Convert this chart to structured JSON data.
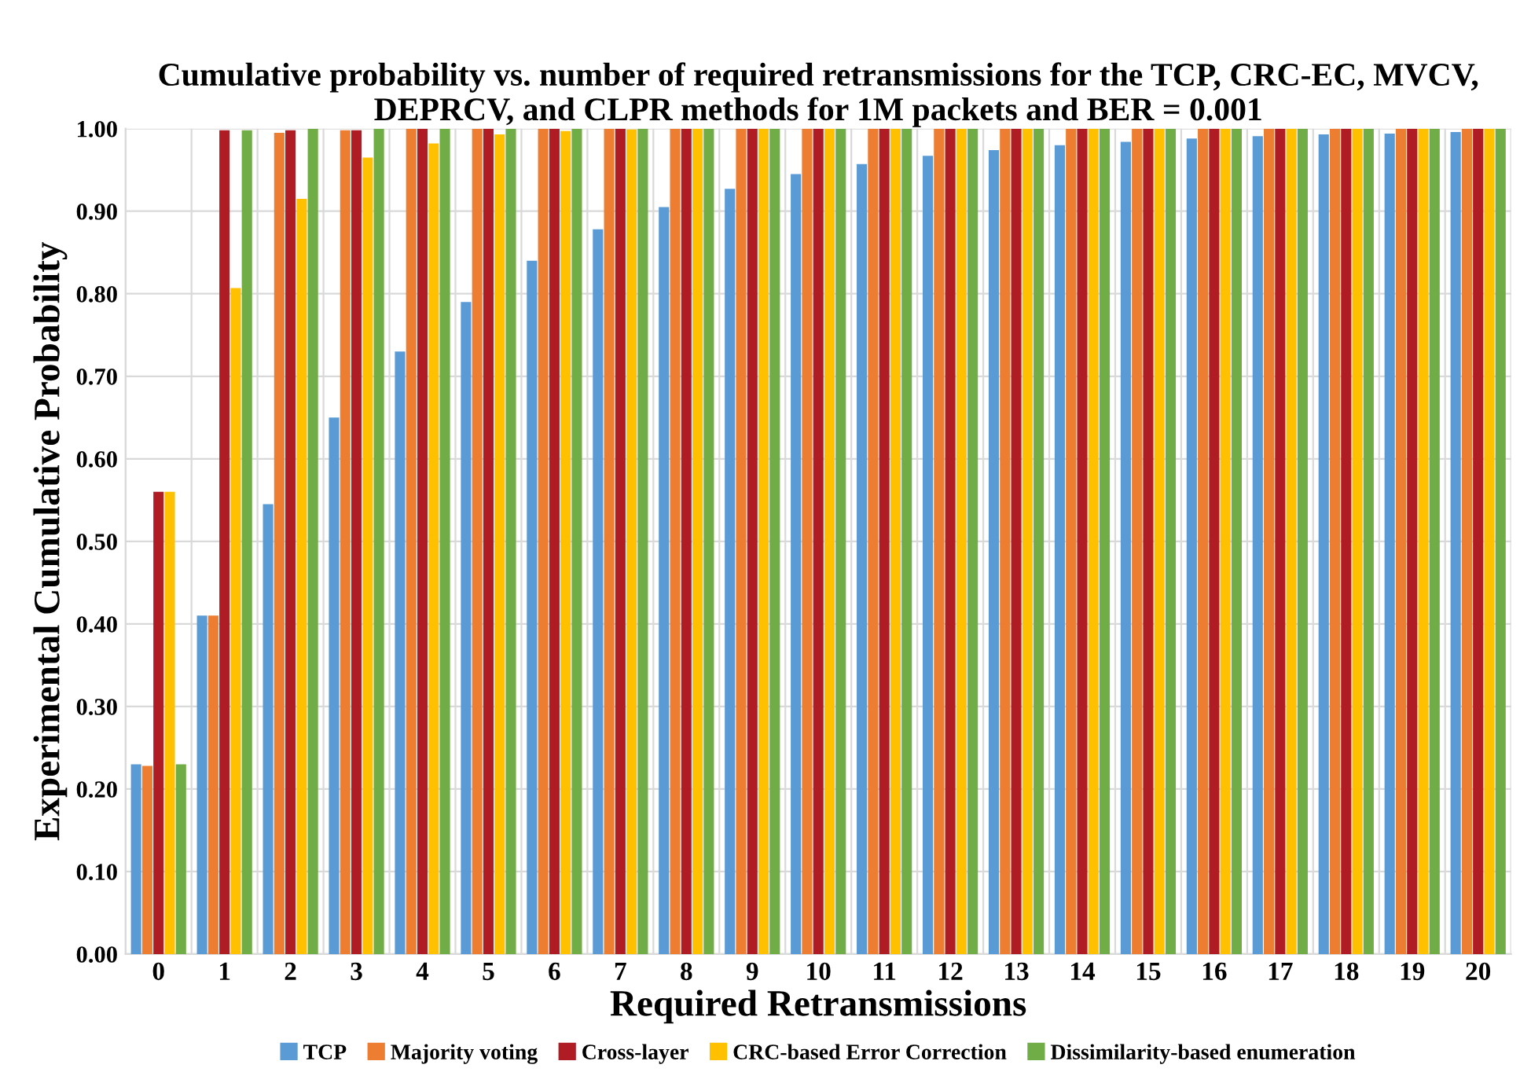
{
  "chart_data": {
    "type": "bar",
    "title": "Cumulative probability vs. number of required retransmissions for the TCP, CRC-EC, MVCV, DEPRCV, and CLPR methods for 1M packets and BER = 0.001",
    "xlabel": "Required Retransmissions",
    "ylabel": "Experimental Cumulative Probability",
    "categories": [
      "0",
      "1",
      "2",
      "3",
      "4",
      "5",
      "6",
      "7",
      "8",
      "9",
      "10",
      "11",
      "12",
      "13",
      "14",
      "15",
      "16",
      "17",
      "18",
      "19",
      "20"
    ],
    "series": [
      {
        "name": "TCP",
        "color": "#5b9bd5",
        "values": [
          0.23,
          0.41,
          0.545,
          0.65,
          0.73,
          0.79,
          0.84,
          0.878,
          0.905,
          0.927,
          0.945,
          0.957,
          0.967,
          0.974,
          0.98,
          0.984,
          0.988,
          0.991,
          0.993,
          0.994,
          0.996
        ]
      },
      {
        "name": "Majority voting",
        "color": "#ed7d31",
        "values": [
          0.228,
          0.41,
          0.995,
          0.998,
          1,
          1,
          1,
          1,
          1,
          1,
          1,
          1,
          1,
          1,
          1,
          1,
          1,
          1,
          1,
          1,
          1
        ]
      },
      {
        "name": "Cross-layer",
        "color": "#b01c24",
        "values": [
          0.56,
          0.998,
          0.998,
          0.998,
          1,
          1,
          1,
          1,
          1,
          1,
          1,
          1,
          1,
          1,
          1,
          1,
          1,
          1,
          1,
          1,
          1
        ]
      },
      {
        "name": "CRC-based Error Correction",
        "color": "#ffc000",
        "values": [
          0.56,
          0.807,
          0.915,
          0.965,
          0.982,
          0.993,
          0.997,
          0.999,
          1,
          1,
          1,
          1,
          1,
          1,
          1,
          1,
          1,
          1,
          1,
          1,
          1
        ]
      },
      {
        "name": "Dissimilarity-based enumeration",
        "color": "#70ad47",
        "values": [
          0.23,
          0.998,
          1,
          1,
          1,
          1,
          1,
          1,
          1,
          1,
          1,
          1,
          1,
          1,
          1,
          1,
          1,
          1,
          1,
          1,
          1
        ]
      }
    ],
    "ylim": [
      0,
      1
    ],
    "yticks": [
      {
        "value": 0,
        "label": "0.00"
      },
      {
        "value": 0.1,
        "label": "0.10"
      },
      {
        "value": 0.2,
        "label": "0.20"
      },
      {
        "value": 0.3,
        "label": "0.30"
      },
      {
        "value": 0.4,
        "label": "0.40"
      },
      {
        "value": 0.5,
        "label": "0.50"
      },
      {
        "value": 0.6,
        "label": "0.60"
      },
      {
        "value": 0.7,
        "label": "0.70"
      },
      {
        "value": 0.8,
        "label": "0.80"
      },
      {
        "value": 0.9,
        "label": "0.90"
      },
      {
        "value": 1,
        "label": "1.00"
      }
    ],
    "grid": true,
    "legend": "bottom"
  }
}
